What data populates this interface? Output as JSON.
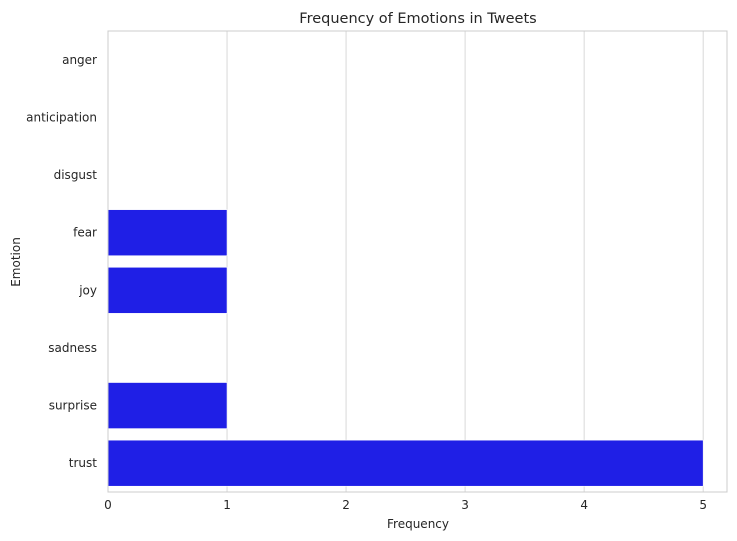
{
  "chart_data": {
    "type": "bar",
    "orientation": "horizontal",
    "title": "Frequency of Emotions in Tweets",
    "xlabel": "Frequency",
    "ylabel": "Emotion",
    "categories": [
      "anger",
      "anticipation",
      "disgust",
      "fear",
      "joy",
      "sadness",
      "surprise",
      "trust"
    ],
    "values": [
      0,
      0,
      0,
      1,
      1,
      0,
      1,
      5
    ],
    "xlim": [
      0,
      5.2
    ],
    "xticks": [
      "0",
      "1",
      "2",
      "3",
      "4",
      "5"
    ],
    "grid": "vertical",
    "bar_color": "#1f1fe6",
    "grid_color": "#d9d9d9",
    "frame_color": "#cccccc"
  }
}
